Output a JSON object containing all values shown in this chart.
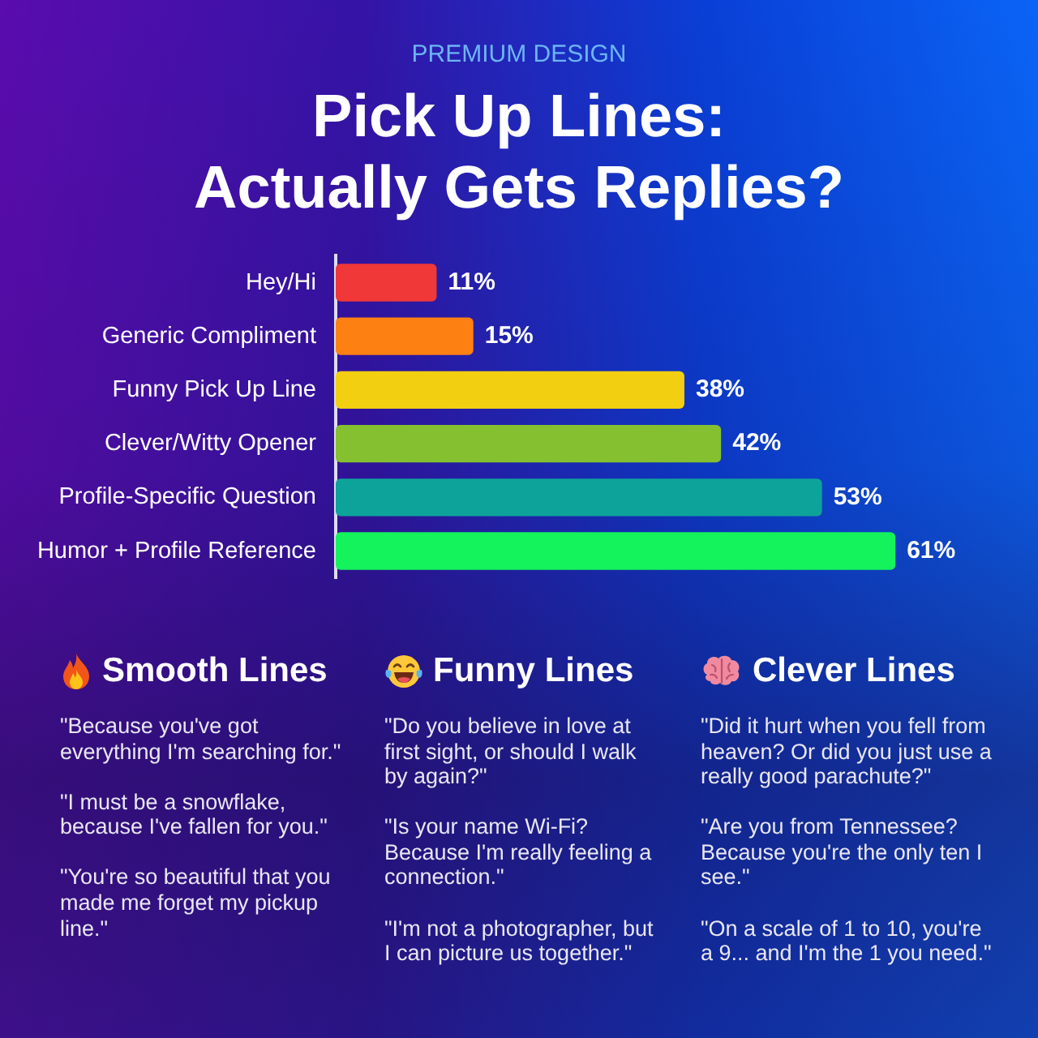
{
  "chart_data": [
    {
      "type": "bar",
      "orientation": "horizontal",
      "subtitle": "PREMIUM DESIGN",
      "title": "Pick Up Lines:\nActually Gets Replies?",
      "categories": [
        "Hey/Hi",
        "Generic Compliment",
        "Funny Pick Up Line",
        "Clever/Witty Opener",
        "Profile-Specific Question",
        "Humor + Profile Reference"
      ],
      "values": [
        11,
        15,
        38,
        42,
        53,
        61
      ],
      "colors": [
        "#f03838",
        "#fd8012",
        "#f2cf10",
        "#84c030",
        "#0ea39a",
        "#14f25c"
      ],
      "value_labels": [
        "11%",
        "15%",
        "38%",
        "42%",
        "53%",
        "61%"
      ],
      "tick_labels": "y"
    },
    {
      "type": "other",
      "title": "Smooth Lines",
      "annotations": [
        "\"Because you've got everything I'm searching for.\"",
        "\"I must be a snowflake, because I've fallen for you.\"",
        "\"You're so beautiful that you made me forget my pickup line.\""
      ]
    },
    {
      "type": "other",
      "title": "Funny Lines",
      "annotations": [
        "\"Do you believe in love at first sight, or should I walk by again?\"",
        "\"Is your name Wi-Fi? Because I'm really feeling a connection.\"",
        "\"I'm not a photographer, but I can picture us together.\""
      ]
    },
    {
      "type": "other",
      "title": "Clever Lines",
      "annotations": [
        "\"Did it hurt when you fell from heaven? Or did you just use a really good parachute?\"",
        "\"Are you from Tennessee? Because you're the only ten I see.\"",
        "\"On a scale of 1 to 10, you're a 9... and I'm the 1 you need.\""
      ]
    }
  ]
}
